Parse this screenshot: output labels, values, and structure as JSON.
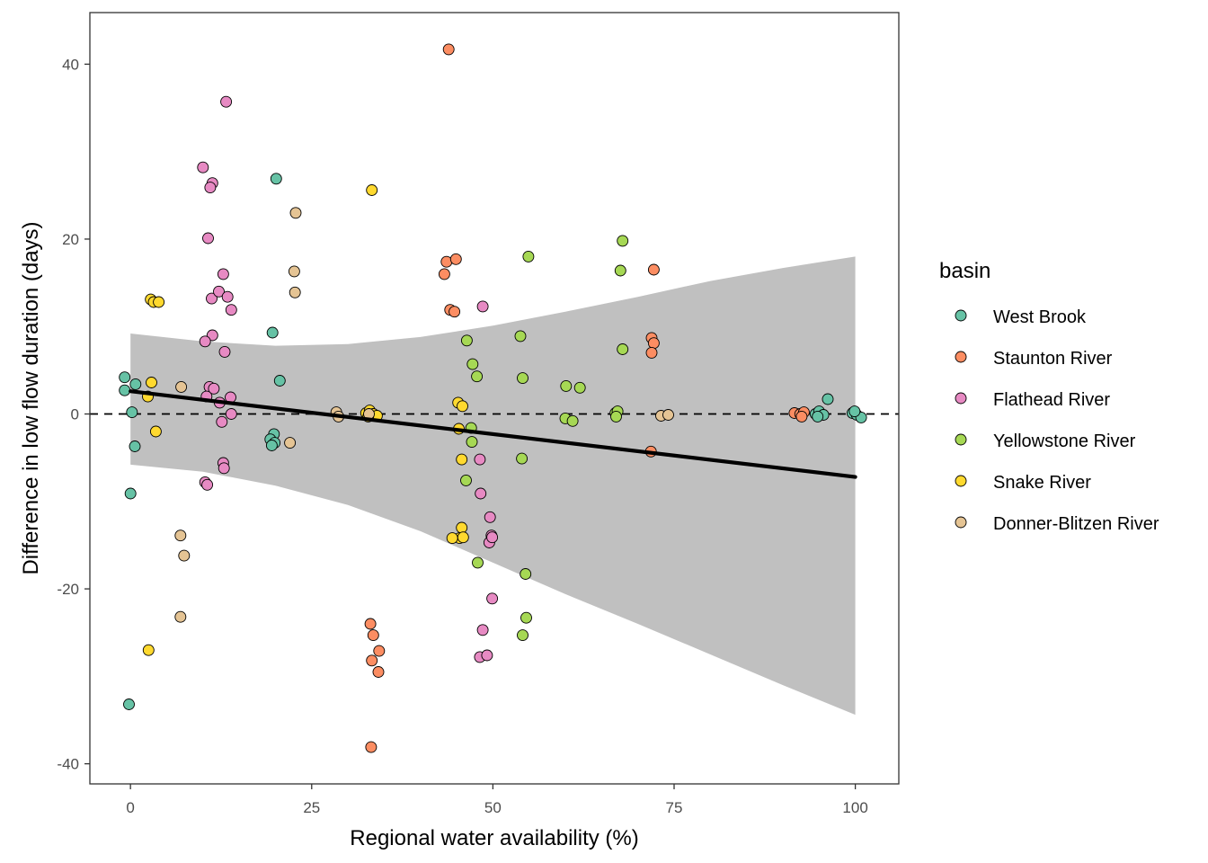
{
  "chart_data": {
    "type": "scatter",
    "title": "",
    "xlabel": "Regional water availability (%)",
    "ylabel": "Difference in low flow duration (days)",
    "xlim": [
      -5.6,
      106
    ],
    "ylim": [
      -42.3,
      45.9
    ],
    "x_ticks": [
      0,
      25,
      50,
      75,
      100
    ],
    "x_tick_labels": [
      "0",
      "25",
      "50",
      "75",
      "100"
    ],
    "y_ticks": [
      -40,
      -20,
      0,
      20,
      40
    ],
    "y_tick_labels": [
      "-40",
      "-20",
      "0",
      "20",
      "40"
    ],
    "grid": false,
    "reference_line": {
      "y": 0,
      "style": "dashed",
      "color": "#000000"
    },
    "trend_line": {
      "type": "linear",
      "color": "#000000",
      "x": [
        0,
        100
      ],
      "y": [
        2.6,
        -7.2
      ],
      "ribbon": {
        "color": "#c0c0c0",
        "x": [
          0,
          10,
          20,
          30,
          40,
          50,
          60,
          70,
          80,
          90,
          100
        ],
        "upper": [
          9.2,
          8.3,
          7.8,
          8.0,
          8.8,
          10.1,
          11.7,
          13.4,
          15.2,
          16.7,
          18.0
        ],
        "lower": [
          -5.8,
          -6.6,
          -8.2,
          -10.4,
          -13.4,
          -17.0,
          -20.6,
          -24.0,
          -27.5,
          -31.0,
          -34.4
        ]
      }
    },
    "legend": {
      "title": "basin",
      "position": "right",
      "entries": [
        {
          "name": "West Brook",
          "color": "#66c2a5"
        },
        {
          "name": "Staunton River",
          "color": "#fc8d62"
        },
        {
          "name": "Flathead River",
          "color": "#e78ac3"
        },
        {
          "name": "Yellowstone River",
          "color": "#a6d854"
        },
        {
          "name": "Snake River",
          "color": "#ffd92f"
        },
        {
          "name": "Donner-Blitzen River",
          "color": "#e5c494"
        }
      ]
    },
    "series": [
      {
        "name": "West Brook",
        "color": "#66c2a5",
        "points": [
          [
            -0.8,
            4.2
          ],
          [
            -0.8,
            2.7
          ],
          [
            0.7,
            3.4
          ],
          [
            0.2,
            0.2
          ],
          [
            0.6,
            -3.7
          ],
          [
            0.0,
            -9.1
          ],
          [
            -0.2,
            -33.2
          ],
          [
            20.1,
            26.9
          ],
          [
            19.6,
            9.3
          ],
          [
            20.6,
            3.8
          ],
          [
            19.8,
            -2.3
          ],
          [
            19.3,
            -2.9
          ],
          [
            19.9,
            -3.3
          ],
          [
            19.5,
            -3.6
          ],
          [
            94.5,
            0.0
          ],
          [
            95.0,
            0.3
          ],
          [
            95.6,
            -0.1
          ],
          [
            94.8,
            -0.3
          ],
          [
            96.2,
            1.7
          ],
          [
            99.6,
            0.1
          ],
          [
            100.2,
            -0.1
          ],
          [
            100.8,
            -0.4
          ],
          [
            99.9,
            0.3
          ]
        ]
      },
      {
        "name": "Staunton River",
        "color": "#fc8d62",
        "points": [
          [
            43.9,
            41.7
          ],
          [
            43.6,
            17.4
          ],
          [
            44.9,
            17.7
          ],
          [
            43.3,
            16.0
          ],
          [
            44.1,
            11.9
          ],
          [
            44.7,
            11.7
          ],
          [
            72.2,
            16.5
          ],
          [
            71.9,
            8.7
          ],
          [
            72.2,
            8.1
          ],
          [
            71.9,
            7.0
          ],
          [
            71.8,
            -4.3
          ],
          [
            33.1,
            -24.0
          ],
          [
            33.5,
            -25.3
          ],
          [
            34.3,
            -27.1
          ],
          [
            33.3,
            -28.2
          ],
          [
            34.2,
            -29.5
          ],
          [
            33.2,
            -38.1
          ],
          [
            91.6,
            0.1
          ],
          [
            92.4,
            0.0
          ],
          [
            92.9,
            0.2
          ],
          [
            92.6,
            -0.3
          ]
        ]
      },
      {
        "name": "Flathead River",
        "color": "#e78ac3",
        "points": [
          [
            13.2,
            35.7
          ],
          [
            10.0,
            28.2
          ],
          [
            11.3,
            26.4
          ],
          [
            11.0,
            25.9
          ],
          [
            10.7,
            20.1
          ],
          [
            12.8,
            16.0
          ],
          [
            11.2,
            13.2
          ],
          [
            12.2,
            14.0
          ],
          [
            13.4,
            13.4
          ],
          [
            13.9,
            11.9
          ],
          [
            11.3,
            9.0
          ],
          [
            10.3,
            8.3
          ],
          [
            13.0,
            7.1
          ],
          [
            10.9,
            3.1
          ],
          [
            11.5,
            2.9
          ],
          [
            10.5,
            2.0
          ],
          [
            13.8,
            1.9
          ],
          [
            12.3,
            1.3
          ],
          [
            13.9,
            0.0
          ],
          [
            12.6,
            -0.9
          ],
          [
            12.8,
            -5.6
          ],
          [
            12.9,
            -6.2
          ],
          [
            10.3,
            -7.8
          ],
          [
            10.6,
            -8.1
          ],
          [
            48.6,
            12.3
          ],
          [
            48.2,
            -5.2
          ],
          [
            48.3,
            -9.1
          ],
          [
            49.6,
            -11.8
          ],
          [
            49.8,
            -13.9
          ],
          [
            49.5,
            -14.7
          ],
          [
            49.9,
            -14.1
          ],
          [
            49.9,
            -21.1
          ],
          [
            48.6,
            -24.7
          ],
          [
            48.2,
            -27.8
          ],
          [
            49.2,
            -27.6
          ]
        ]
      },
      {
        "name": "Yellowstone River",
        "color": "#a6d854",
        "points": [
          [
            54.9,
            18.0
          ],
          [
            46.4,
            8.4
          ],
          [
            47.2,
            5.7
          ],
          [
            47.8,
            4.3
          ],
          [
            53.8,
            8.9
          ],
          [
            54.1,
            4.1
          ],
          [
            47.0,
            -1.6
          ],
          [
            47.1,
            -3.2
          ],
          [
            46.3,
            -7.6
          ],
          [
            47.9,
            -17.0
          ],
          [
            54.0,
            -5.1
          ],
          [
            54.5,
            -18.3
          ],
          [
            54.6,
            -23.3
          ],
          [
            54.1,
            -25.3
          ],
          [
            67.9,
            19.8
          ],
          [
            67.6,
            16.4
          ],
          [
            67.9,
            7.4
          ],
          [
            60.1,
            3.2
          ],
          [
            62.0,
            3.0
          ],
          [
            60.0,
            -0.5
          ],
          [
            61.0,
            -0.8
          ],
          [
            66.9,
            0.1
          ],
          [
            67.2,
            0.3
          ],
          [
            67.0,
            -0.3
          ]
        ]
      },
      {
        "name": "Snake River",
        "color": "#ffd92f",
        "points": [
          [
            33.3,
            25.6
          ],
          [
            2.8,
            13.1
          ],
          [
            3.2,
            12.8
          ],
          [
            3.9,
            12.8
          ],
          [
            2.9,
            3.6
          ],
          [
            2.4,
            2.0
          ],
          [
            3.5,
            -2.0
          ],
          [
            2.5,
            -27.0
          ],
          [
            32.5,
            0.1
          ],
          [
            33.0,
            0.4
          ],
          [
            33.5,
            0.0
          ],
          [
            34.0,
            -0.2
          ],
          [
            32.8,
            -0.3
          ],
          [
            45.2,
            1.3
          ],
          [
            45.8,
            0.9
          ],
          [
            45.3,
            -1.7
          ],
          [
            45.7,
            -5.2
          ],
          [
            45.7,
            -13.0
          ],
          [
            45.4,
            -14.2
          ],
          [
            44.4,
            -14.2
          ],
          [
            45.9,
            -14.1
          ]
        ]
      },
      {
        "name": "Donner-Blitzen River",
        "color": "#e5c494",
        "points": [
          [
            22.8,
            23.0
          ],
          [
            22.6,
            16.3
          ],
          [
            22.7,
            13.9
          ],
          [
            7.0,
            3.1
          ],
          [
            22.0,
            -3.3
          ],
          [
            28.4,
            0.2
          ],
          [
            28.7,
            -0.3
          ],
          [
            32.9,
            0.0
          ],
          [
            6.9,
            -13.9
          ],
          [
            7.4,
            -16.2
          ],
          [
            6.9,
            -23.2
          ],
          [
            73.2,
            -0.2
          ],
          [
            74.2,
            -0.1
          ]
        ]
      }
    ]
  }
}
